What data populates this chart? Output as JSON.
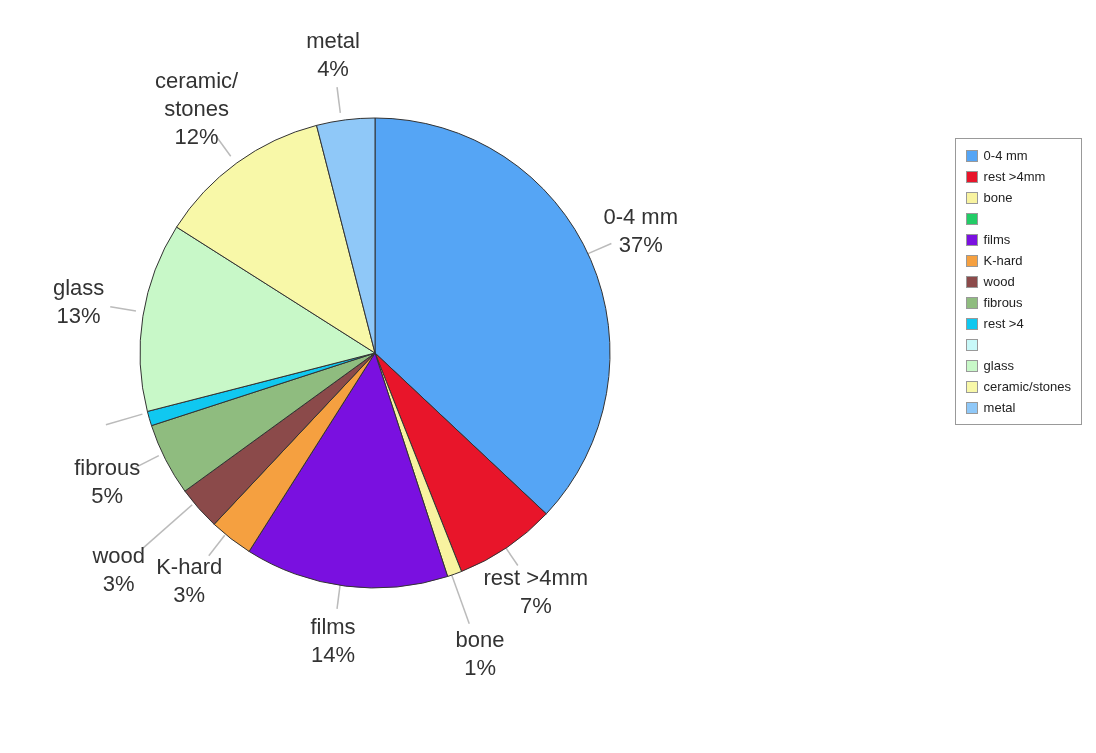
{
  "chart_data": {
    "type": "pie",
    "categories": [
      "0-4 mm",
      "rest >4mm",
      "bone",
      null,
      "films",
      "K-hard",
      "wood",
      "fibrous",
      "rest >4",
      null,
      "glass",
      "ceramic/stones",
      "metal"
    ],
    "values": [
      37,
      7,
      1,
      0,
      14,
      3,
      3,
      5,
      1,
      0,
      13,
      12,
      4
    ],
    "value_labels": [
      "37%",
      "7%",
      "1%",
      null,
      "14%",
      "3%",
      "3%",
      "5%",
      null,
      null,
      "13%",
      "12%",
      "4%"
    ],
    "colors": [
      "#55a5f5",
      "#e8152a",
      "#f8f3a0",
      "#22cc66",
      "#7a10e0",
      "#f5a040",
      "#8b4a4a",
      "#8fbc7f",
      "#10c8f0",
      "#c8f8f8",
      "#c8f8c8",
      "#f8f8a8",
      "#8fc8f8"
    ],
    "legend": "right"
  }
}
